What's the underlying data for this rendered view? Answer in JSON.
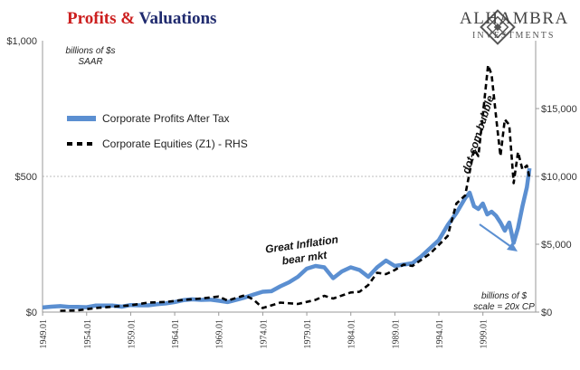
{
  "title": {
    "part1": "Profits",
    "part2": " & ",
    "part3": "Valuations"
  },
  "brand": {
    "name": "ALHAMBRA",
    "sub": "INVESTMENTS",
    "logo": "diamond-lattice-logo"
  },
  "colors": {
    "profits": "#5b8fd1",
    "equities": "#000000",
    "title_red": "#cc1f1f",
    "title_blue": "#1f2a6e",
    "grid": "#bdbdbd"
  },
  "chart_data": {
    "type": "line",
    "title": "Profits & Valuations",
    "left_axis": {
      "ticks": [
        "$0",
        "$500",
        "$1,000"
      ],
      "ylim": [
        0,
        1000
      ],
      "unit_note": [
        "billions of $s",
        "SAAR"
      ]
    },
    "right_axis": {
      "ticks": [
        "$0",
        "$5,000",
        "$10,000",
        "$15,000"
      ],
      "ylim": [
        0,
        20000
      ],
      "unit_note": [
        "billions of $",
        "scale = 20x CP"
      ]
    },
    "x_ticks": [
      "1949.01",
      "1954.01",
      "1959.01",
      "1964.01",
      "1969.01",
      "1974.01",
      "1979.01",
      "1984.01",
      "1989.01",
      "1994.01",
      "1999.01"
    ],
    "xlim": [
      1949,
      2005
    ],
    "grid": "horizontal line at $500 only",
    "legend_position": "upper-left",
    "series": [
      {
        "name": "Corporate Profits After Tax",
        "axis": "left",
        "style": "solid",
        "x": [
          1949,
          1950,
          1951,
          1952,
          1953,
          1954,
          1955,
          1956,
          1957,
          1958,
          1959,
          1960,
          1961,
          1962,
          1963,
          1964,
          1965,
          1966,
          1967,
          1968,
          1969,
          1970,
          1971,
          1972,
          1973,
          1974,
          1975,
          1976,
          1977,
          1978,
          1979,
          1980,
          1981,
          1982,
          1983,
          1984,
          1985,
          1986,
          1987,
          1988,
          1989,
          1990,
          1991,
          1992,
          1993,
          1994,
          1995,
          1996,
          1997,
          1997.5,
          1998,
          1998.5,
          1999,
          1999.5,
          2000,
          2000.5,
          2001,
          2001.5,
          2002,
          2002.5,
          2003,
          2003.5,
          2004,
          2004.3
        ],
        "values": [
          17,
          20,
          22,
          19,
          19,
          18,
          24,
          24,
          24,
          20,
          26,
          25,
          25,
          29,
          32,
          37,
          44,
          47,
          45,
          46,
          42,
          37,
          45,
          54,
          65,
          75,
          77,
          95,
          110,
          130,
          160,
          170,
          165,
          125,
          150,
          165,
          155,
          130,
          165,
          190,
          170,
          175,
          180,
          205,
          235,
          265,
          320,
          365,
          420,
          440,
          390,
          380,
          400,
          360,
          370,
          355,
          330,
          300,
          330,
          255,
          310,
          390,
          460,
          530
        ]
      },
      {
        "name": "Corporate Equities (Z1) - RHS",
        "axis": "right",
        "style": "dashed",
        "x": [
          1951,
          1953,
          1955,
          1957,
          1959,
          1961,
          1963,
          1965,
          1967,
          1969,
          1970,
          1972,
          1973,
          1974,
          1976,
          1978,
          1980,
          1981,
          1982,
          1984,
          1985,
          1986,
          1987,
          1988,
          1989,
          1990,
          1991,
          1993,
          1995,
          1996,
          1997,
          1998,
          1998.5,
          1999,
          1999.6,
          2000,
          2000.6,
          2001,
          2001.5,
          2002,
          2002.5,
          2003,
          2003.5,
          2004,
          2004.3
        ],
        "values": [
          100,
          130,
          300,
          400,
          500,
          700,
          750,
          900,
          1000,
          1150,
          850,
          1250,
          900,
          300,
          700,
          600,
          900,
          1200,
          1000,
          1450,
          1500,
          2000,
          2900,
          2800,
          3100,
          3500,
          3400,
          4300,
          5600,
          8000,
          8600,
          12000,
          11500,
          14500,
          18200,
          17500,
          13800,
          11500,
          14200,
          13800,
          9500,
          11800,
          10500,
          10800,
          9900
        ]
      }
    ],
    "annotations": [
      "Great Inflation bear mkt",
      "dot-com bubble"
    ],
    "arrow": "from 1997.4 toward 2002.6, near dot-com bubble decline"
  }
}
